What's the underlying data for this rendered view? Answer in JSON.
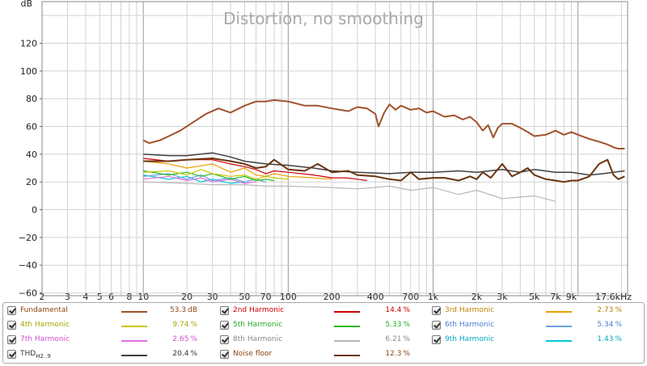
{
  "chart_data": {
    "type": "line",
    "title": "Distortion, no smoothing",
    "ylabel": "dB",
    "xscale": "log",
    "xlim": [
      2,
      22000
    ],
    "ylim": [
      -62,
      150
    ],
    "grid": true,
    "x_ticks": [
      {
        "v": 2,
        "label": "2"
      },
      {
        "v": 3,
        "label": "3"
      },
      {
        "v": 4,
        "label": "4"
      },
      {
        "v": 5,
        "label": "5"
      },
      {
        "v": 6,
        "label": "6"
      },
      {
        "v": 8,
        "label": "8"
      },
      {
        "v": 10,
        "label": "10"
      },
      {
        "v": 20,
        "label": "20"
      },
      {
        "v": 30,
        "label": "30"
      },
      {
        "v": 50,
        "label": "50"
      },
      {
        "v": 70,
        "label": "70"
      },
      {
        "v": 100,
        "label": "100"
      },
      {
        "v": 200,
        "label": "200"
      },
      {
        "v": 400,
        "label": "400"
      },
      {
        "v": 700,
        "label": "700"
      },
      {
        "v": 1000,
        "label": "1k"
      },
      {
        "v": 2000,
        "label": "2k"
      },
      {
        "v": 3000,
        "label": "3k"
      },
      {
        "v": 5000,
        "label": "5k"
      },
      {
        "v": 7000,
        "label": "7k"
      },
      {
        "v": 9000,
        "label": "9k"
      },
      {
        "v": 17600,
        "label": "17.6kHz"
      }
    ],
    "y_ticks": [
      {
        "v": 120,
        "label": "120"
      },
      {
        "v": 100,
        "label": "100"
      },
      {
        "v": 80,
        "label": "80"
      },
      {
        "v": 60,
        "label": "60"
      },
      {
        "v": 40,
        "label": "40"
      },
      {
        "v": 20,
        "label": "20"
      },
      {
        "v": 0,
        "label": "0"
      },
      {
        "v": -20,
        "label": "−20"
      },
      {
        "v": -40,
        "label": "−40"
      },
      {
        "v": -60,
        "label": "−60"
      }
    ],
    "series": [
      {
        "name": "Fundamental",
        "color": "#a0522d",
        "width": 2,
        "x": [
          10,
          11,
          13,
          15,
          18,
          22,
          27,
          33,
          40,
          50,
          60,
          70,
          80,
          100,
          130,
          160,
          200,
          260,
          300,
          350,
          400,
          420,
          460,
          500,
          550,
          600,
          700,
          800,
          900,
          1000,
          1200,
          1400,
          1600,
          1800,
          2000,
          2200,
          2400,
          2600,
          2800,
          3000,
          3500,
          4000,
          4500,
          5000,
          6000,
          7000,
          8000,
          9000,
          10000,
          12000,
          14000,
          16000,
          17600,
          19000,
          21000
        ],
        "y": [
          50,
          48,
          50,
          53,
          57,
          63,
          69,
          73,
          70,
          75,
          78,
          78,
          79,
          78,
          75,
          75,
          73,
          71,
          74,
          73,
          69,
          60,
          70,
          76,
          72,
          75,
          72,
          73,
          70,
          71,
          67,
          68,
          65,
          67,
          63,
          57,
          61,
          52,
          59,
          62,
          62,
          59,
          56,
          53,
          54,
          57,
          54,
          56,
          54,
          51,
          49,
          47,
          45,
          44,
          44
        ]
      },
      {
        "name": "2nd Harmonic",
        "color": "#cc0000",
        "width": 1.2,
        "x": [
          10,
          15,
          20,
          30,
          40,
          50,
          60,
          70,
          80,
          100,
          150,
          200,
          250,
          300,
          350
        ],
        "y": [
          37,
          35,
          36,
          36,
          33,
          31,
          29,
          26,
          28,
          27,
          25,
          23,
          23,
          22,
          21
        ]
      },
      {
        "name": "3rd Harmonic",
        "color": "#e8a000",
        "width": 1.2,
        "x": [
          10,
          15,
          20,
          30,
          40,
          50,
          60,
          70,
          80,
          100,
          150,
          200
        ],
        "y": [
          35,
          33,
          30,
          33,
          27,
          30,
          25,
          24,
          26,
          24,
          23,
          22
        ]
      },
      {
        "name": "4th Harmonic",
        "color": "#c8c800",
        "width": 1.2,
        "x": [
          10,
          15,
          20,
          25,
          30,
          40,
          50,
          60,
          70,
          80,
          100
        ],
        "y": [
          27,
          28,
          25,
          29,
          26,
          24,
          25,
          22,
          24,
          23,
          22
        ]
      },
      {
        "name": "5th Harmonic",
        "color": "#22bb22",
        "width": 1.2,
        "x": [
          10,
          15,
          20,
          25,
          30,
          40,
          50,
          60,
          70,
          80
        ],
        "y": [
          28,
          25,
          27,
          24,
          26,
          22,
          24,
          21,
          22,
          21
        ]
      },
      {
        "name": "6th Harmonic",
        "color": "#6a9fe0",
        "width": 1.2,
        "x": [
          10,
          15,
          20,
          25,
          30,
          40,
          50,
          60,
          70
        ],
        "y": [
          24,
          26,
          22,
          25,
          21,
          23,
          20,
          22,
          20
        ]
      },
      {
        "name": "7th Harmonic",
        "color": "#e070e0",
        "width": 1.2,
        "x": [
          10,
          15,
          20,
          25,
          30,
          40,
          50,
          60
        ],
        "y": [
          22,
          24,
          21,
          23,
          20,
          22,
          19,
          20
        ]
      },
      {
        "name": "8th Harmonic",
        "color": "#b8b8b8",
        "width": 1.2,
        "x": [
          10,
          20,
          30,
          50,
          70,
          100,
          200,
          300,
          500,
          700,
          1000,
          1500,
          2000,
          3000,
          5000,
          7000
        ],
        "y": [
          20,
          19,
          18,
          18,
          17,
          17,
          16,
          15,
          17,
          14,
          16,
          11,
          14,
          8,
          10,
          6
        ]
      },
      {
        "name": "9th Harmonic",
        "color": "#00c8d8",
        "width": 1.2,
        "x": [
          10,
          15,
          20,
          25,
          30,
          40,
          50
        ],
        "y": [
          25,
          22,
          24,
          20,
          22,
          19,
          20
        ]
      },
      {
        "name": "THD H2..9",
        "color": "#404040",
        "width": 1.5,
        "x": [
          10,
          15,
          20,
          30,
          40,
          50,
          70,
          100,
          150,
          200,
          300,
          500,
          700,
          1000,
          1500,
          2000,
          3000,
          4000,
          5000,
          7000,
          9000,
          12000,
          15000,
          17600,
          21000
        ],
        "y": [
          40,
          39,
          39,
          41,
          38,
          35,
          33,
          32,
          30,
          28,
          27,
          26,
          27,
          27,
          28,
          27,
          29,
          27,
          29,
          27,
          27,
          25,
          26,
          27,
          28
        ]
      },
      {
        "name": "Noise floor",
        "color": "#6b3410",
        "width": 2,
        "x": [
          10,
          15,
          20,
          30,
          40,
          50,
          60,
          70,
          80,
          100,
          130,
          160,
          200,
          260,
          300,
          400,
          500,
          600,
          700,
          800,
          1000,
          1200,
          1500,
          1800,
          2000,
          2200,
          2500,
          3000,
          3500,
          4000,
          4500,
          5000,
          6000,
          7000,
          8000,
          9000,
          10000,
          12000,
          14000,
          16000,
          17600,
          19000,
          21000
        ],
        "y": [
          35,
          35,
          36,
          37,
          35,
          33,
          30,
          31,
          36,
          29,
          28,
          33,
          27,
          28,
          25,
          24,
          22,
          21,
          27,
          22,
          23,
          23,
          21,
          24,
          22,
          27,
          23,
          33,
          24,
          27,
          30,
          25,
          22,
          21,
          20,
          21,
          21,
          24,
          33,
          36,
          25,
          22,
          24
        ]
      }
    ]
  },
  "legend": {
    "items": [
      {
        "label": "Fundamental",
        "color": "#a0522d",
        "value": "53.3",
        "unit": "dB"
      },
      {
        "label": "2nd Harmonic",
        "color": "#cc0000",
        "value": "14.4",
        "unit": "%"
      },
      {
        "label": "3rd Harmonic",
        "color": "#e8a000",
        "value": "2.73",
        "unit": "%"
      },
      {
        "label": "4th Harmonic",
        "color": "#c8c800",
        "value": "9.74",
        "unit": "%"
      },
      {
        "label": "5th Harmonic",
        "color": "#22bb22",
        "value": "5.33",
        "unit": "%"
      },
      {
        "label": "6th Harmonic",
        "color": "#6a9fe0",
        "value": "5.34",
        "unit": "%"
      },
      {
        "label": "7th Harmonic",
        "color": "#e070e0",
        "value": "2.65",
        "unit": "%"
      },
      {
        "label": "8th Harmonic",
        "color": "#b8b8b8",
        "value": "6.21",
        "unit": "%"
      },
      {
        "label": "9th Harmonic",
        "color": "#00c8d8",
        "value": "1.43",
        "unit": "%"
      },
      {
        "label": "THD",
        "label_sub": "H2..9",
        "color": "#404040",
        "value": "20.4",
        "unit": "%"
      },
      {
        "label": "Noise floor",
        "color": "#6b3410",
        "value": "12.3",
        "unit": "%"
      }
    ],
    "text_colors": [
      "#8b4513",
      "#cc0000",
      "#c08000",
      "#a8a800",
      "#22aa22",
      "#4a7fd0",
      "#d050d0",
      "#888888",
      "#00a8c0",
      "#333333",
      "#8b4513"
    ]
  }
}
